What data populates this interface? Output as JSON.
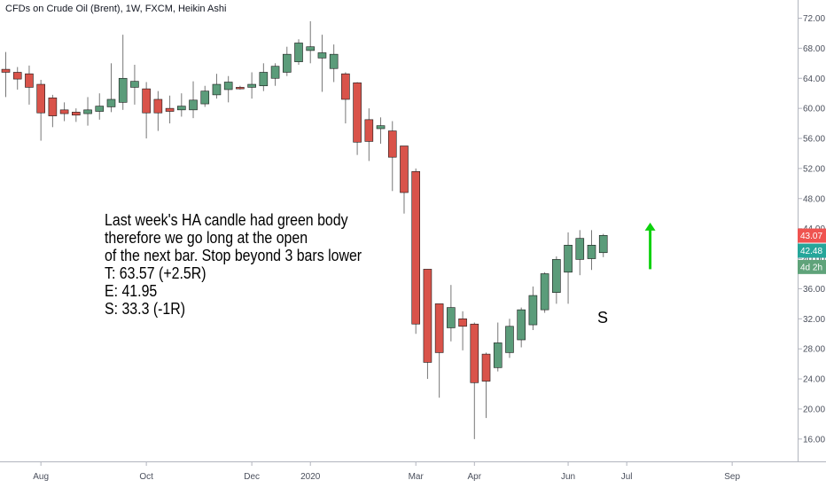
{
  "header": {
    "title": "CFDs on Crude Oil (Brent), 1W, FXCM, Heikin Ashi"
  },
  "annotation": {
    "lines": [
      "Last week's HA candle had green body",
      "therefore we go long at the open",
      "of the next bar. Stop beyond 3 bars lower",
      "T: 63.57 (+2.5R)",
      "E: 41.95",
      "S: 33.3 (-1R)"
    ],
    "marker": "S"
  },
  "price_tags": [
    {
      "label": "43.07",
      "value": 43.07,
      "color": "#ef5350"
    },
    {
      "label": "42.48",
      "value": 42.48,
      "color": "#26a69a"
    },
    {
      "label": "4d 2h",
      "value": 38.9,
      "color": "#5fa37a"
    }
  ],
  "colors": {
    "up": "#5b9c7a",
    "down": "#d9534a",
    "arrow": "#0ed10e"
  },
  "chart_data": {
    "type": "candlestick",
    "title": "CFDs on Crude Oil (Brent), 1W, FXCM, Heikin Ashi",
    "ylim": [
      13.5,
      74.5
    ],
    "yticks": [
      "16.00",
      "20.00",
      "24.00",
      "28.00",
      "32.00",
      "36.00",
      "40.00",
      "44.00",
      "48.00",
      "52.00",
      "56.00",
      "60.00",
      "64.00",
      "68.00",
      "72.00"
    ],
    "xticks": [
      {
        "label": "Aug",
        "index": 3
      },
      {
        "label": "Oct",
        "index": 12
      },
      {
        "label": "Dec",
        "index": 21
      },
      {
        "label": "2020",
        "index": 26
      },
      {
        "label": "Mar",
        "index": 35
      },
      {
        "label": "Apr",
        "index": 40
      },
      {
        "label": "Jun",
        "index": 48
      },
      {
        "label": "Jul",
        "index": 53
      },
      {
        "label": "Sep",
        "index": 62
      }
    ],
    "candles": [
      {
        "o": 65.2,
        "h": 67.5,
        "l": 61.5,
        "c": 64.8
      },
      {
        "o": 64.8,
        "h": 65.5,
        "l": 62.5,
        "c": 63.9
      },
      {
        "o": 64.6,
        "h": 65.7,
        "l": 60.5,
        "c": 62.8
      },
      {
        "o": 63.2,
        "h": 63.8,
        "l": 55.7,
        "c": 59.4
      },
      {
        "o": 61.4,
        "h": 61.8,
        "l": 57.5,
        "c": 59.0
      },
      {
        "o": 59.8,
        "h": 60.8,
        "l": 58.3,
        "c": 59.3
      },
      {
        "o": 59.5,
        "h": 60.0,
        "l": 58.2,
        "c": 59.1
      },
      {
        "o": 59.3,
        "h": 61.5,
        "l": 57.7,
        "c": 59.8
      },
      {
        "o": 59.6,
        "h": 62.0,
        "l": 58.5,
        "c": 60.3
      },
      {
        "o": 60.2,
        "h": 66.0,
        "l": 59.5,
        "c": 61.2
      },
      {
        "o": 60.8,
        "h": 69.8,
        "l": 59.8,
        "c": 64.0
      },
      {
        "o": 62.8,
        "h": 65.8,
        "l": 60.5,
        "c": 63.6
      },
      {
        "o": 62.6,
        "h": 63.5,
        "l": 56.0,
        "c": 59.4
      },
      {
        "o": 61.2,
        "h": 62.3,
        "l": 57.0,
        "c": 59.4
      },
      {
        "o": 60.0,
        "h": 61.7,
        "l": 58.0,
        "c": 59.6
      },
      {
        "o": 59.8,
        "h": 62.0,
        "l": 58.9,
        "c": 60.3
      },
      {
        "o": 59.8,
        "h": 63.6,
        "l": 58.7,
        "c": 61.1
      },
      {
        "o": 60.6,
        "h": 63.0,
        "l": 60.2,
        "c": 62.3
      },
      {
        "o": 61.8,
        "h": 64.6,
        "l": 61.3,
        "c": 63.2
      },
      {
        "o": 62.5,
        "h": 64.3,
        "l": 60.8,
        "c": 63.5
      },
      {
        "o": 62.8,
        "h": 63.0,
        "l": 62.5,
        "c": 62.6
      },
      {
        "o": 62.8,
        "h": 64.8,
        "l": 61.3,
        "c": 63.2
      },
      {
        "o": 63.0,
        "h": 66.0,
        "l": 62.3,
        "c": 64.8
      },
      {
        "o": 64.0,
        "h": 66.0,
        "l": 63.0,
        "c": 65.6
      },
      {
        "o": 64.8,
        "h": 68.2,
        "l": 64.3,
        "c": 67.2
      },
      {
        "o": 66.2,
        "h": 69.2,
        "l": 65.8,
        "c": 68.7
      },
      {
        "o": 67.7,
        "h": 71.6,
        "l": 66.0,
        "c": 68.2
      },
      {
        "o": 66.7,
        "h": 69.8,
        "l": 62.2,
        "c": 67.4
      },
      {
        "o": 65.3,
        "h": 68.5,
        "l": 63.5,
        "c": 67.2
      },
      {
        "o": 64.6,
        "h": 64.8,
        "l": 58.0,
        "c": 61.2
      },
      {
        "o": 63.4,
        "h": 63.5,
        "l": 53.8,
        "c": 55.5
      },
      {
        "o": 58.5,
        "h": 60.0,
        "l": 53.0,
        "c": 55.6
      },
      {
        "o": 57.3,
        "h": 58.8,
        "l": 55.3,
        "c": 57.7
      },
      {
        "o": 57.0,
        "h": 58.3,
        "l": 49.0,
        "c": 53.5
      },
      {
        "o": 55.0,
        "h": 55.0,
        "l": 46.0,
        "c": 48.8
      },
      {
        "o": 51.6,
        "h": 52.0,
        "l": 30.0,
        "c": 31.3
      },
      {
        "o": 38.6,
        "h": 38.6,
        "l": 24.0,
        "c": 26.2
      },
      {
        "o": 34.0,
        "h": 34.0,
        "l": 21.5,
        "c": 27.5
      },
      {
        "o": 30.8,
        "h": 36.5,
        "l": 29.0,
        "c": 33.5
      },
      {
        "o": 32.0,
        "h": 33.0,
        "l": 27.8,
        "c": 31.0
      },
      {
        "o": 31.3,
        "h": 31.5,
        "l": 16.0,
        "c": 23.5
      },
      {
        "o": 27.3,
        "h": 27.5,
        "l": 18.8,
        "c": 23.7
      },
      {
        "o": 25.5,
        "h": 31.5,
        "l": 25.0,
        "c": 28.8
      },
      {
        "o": 27.5,
        "h": 32.0,
        "l": 26.8,
        "c": 31.0
      },
      {
        "o": 29.2,
        "h": 33.5,
        "l": 28.2,
        "c": 33.2
      },
      {
        "o": 31.2,
        "h": 36.3,
        "l": 30.5,
        "c": 35.1
      },
      {
        "o": 33.2,
        "h": 38.2,
        "l": 32.8,
        "c": 38.0
      },
      {
        "o": 35.5,
        "h": 40.3,
        "l": 34.0,
        "c": 39.9
      },
      {
        "o": 38.2,
        "h": 43.5,
        "l": 34.0,
        "c": 41.8
      },
      {
        "o": 39.9,
        "h": 43.8,
        "l": 37.8,
        "c": 42.7
      },
      {
        "o": 40.0,
        "h": 43.8,
        "l": 38.5,
        "c": 41.8
      },
      {
        "o": 40.8,
        "h": 43.3,
        "l": 40.2,
        "c": 43.1
      }
    ],
    "arrow": {
      "index": 55,
      "from": 38.6,
      "to": 44.8
    },
    "marker": {
      "label": "S",
      "index": 52,
      "value": 31.9
    }
  }
}
